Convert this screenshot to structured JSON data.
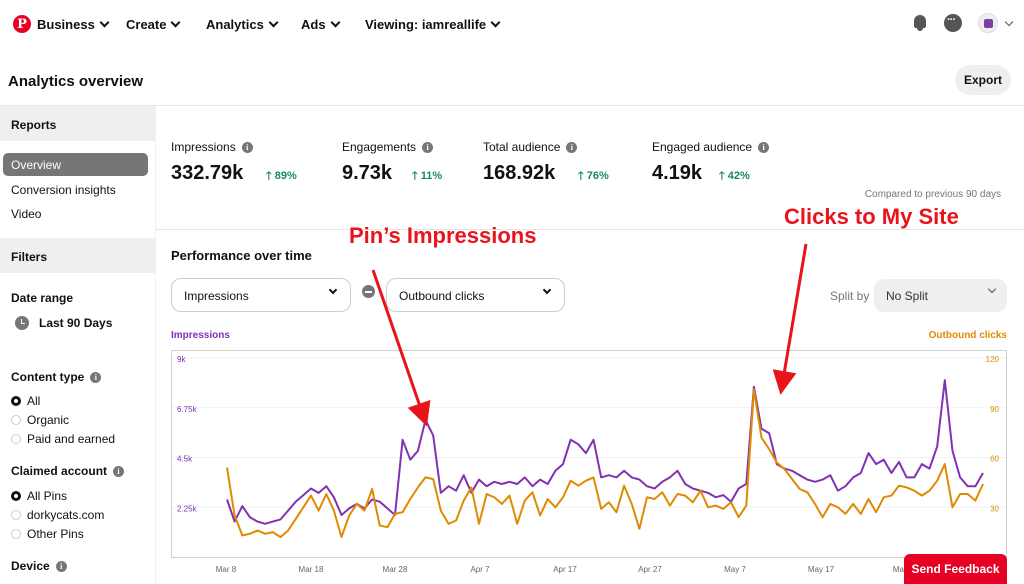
{
  "nav": {
    "business": "Business",
    "create": "Create",
    "analytics": "Analytics",
    "ads": "Ads",
    "viewing": "Viewing: iamreallife"
  },
  "header": {
    "title": "Analytics overview",
    "export_label": "Export"
  },
  "sidebar": {
    "reports_label": "Reports",
    "items": [
      "Overview",
      "Conversion insights",
      "Video"
    ],
    "filters_label": "Filters",
    "date_range_label": "Date range",
    "date_range_value": "Last 90 Days",
    "content_type_label": "Content type",
    "content_type_options": [
      "All",
      "Organic",
      "Paid and earned"
    ],
    "claimed_account_label": "Claimed account",
    "claimed_account_options": [
      "All Pins",
      "dorkycats.com",
      "Other Pins"
    ],
    "device_label": "Device"
  },
  "metrics": [
    {
      "label": "Impressions",
      "value": "332.79k",
      "delta": "89%"
    },
    {
      "label": "Engagements",
      "value": "9.73k",
      "delta": "11%"
    },
    {
      "label": "Total audience",
      "value": "168.92k",
      "delta": "76%"
    },
    {
      "label": "Engaged audience",
      "value": "4.19k",
      "delta": "42%"
    }
  ],
  "compare_note": "Compared to previous 90 days",
  "performance": {
    "title": "Performance over time",
    "metric1": "Impressions",
    "metric2": "Outbound clicks",
    "split_label": "Split by",
    "split_value": "No Split",
    "left_axis_title": "Impressions",
    "right_axis_title": "Outbound clicks"
  },
  "annotations": {
    "left": "Pin’s Impressions",
    "right": "Clicks to My Site"
  },
  "feedback_label": "Send Feedback",
  "colors": {
    "impressions": "#8032b4",
    "clicks": "#e08a00",
    "accent": "#e60023",
    "positive": "#1a8a56"
  },
  "chart_data": {
    "type": "line",
    "x_tick_labels": [
      "Mar 8",
      "Mar 18",
      "Mar 28",
      "Apr 7",
      "Apr 17",
      "Apr 27",
      "May 7",
      "May 17",
      "May 27"
    ],
    "left_ticks": [
      "2.25k",
      "4.5k",
      "6.75k",
      "9k"
    ],
    "right_ticks": [
      "30",
      "60",
      "90",
      "120"
    ],
    "ylim_left": [
      0,
      9000
    ],
    "ylim_right": [
      0,
      120
    ],
    "series": [
      {
        "name": "Impressions",
        "axis": "left",
        "color": "#8032b4",
        "values": [
          2600,
          1600,
          2300,
          1800,
          1600,
          1500,
          1600,
          1700,
          2100,
          2500,
          2800,
          3100,
          2900,
          3200,
          2700,
          1900,
          2200,
          2400,
          2200,
          2600,
          2500,
          2200,
          1900,
          5300,
          4400,
          4800,
          6200,
          5500,
          2900,
          3200,
          3000,
          3700,
          2900,
          3500,
          3200,
          3400,
          3300,
          3400,
          3300,
          3600,
          3200,
          3500,
          3300,
          3900,
          4200,
          5300,
          5100,
          4700,
          5300,
          3600,
          3700,
          3600,
          3900,
          3600,
          3500,
          3200,
          3100,
          3400,
          3600,
          3900,
          3300,
          3100,
          3000,
          2900,
          2700,
          2800,
          2500,
          3100,
          3300,
          7700,
          5800,
          5600,
          4200,
          4000,
          3900,
          3700,
          3500,
          3400,
          3500,
          3700,
          3000,
          3200,
          3600,
          3800,
          4700,
          4200,
          4400,
          3800,
          4300,
          3600,
          3600,
          4200,
          4000,
          5000,
          8000,
          4800,
          3600,
          3200,
          3200,
          3800
        ]
      },
      {
        "name": "Outbound clicks",
        "axis": "right",
        "color": "#e08a00",
        "values": [
          54,
          25,
          13,
          14,
          16,
          14,
          15,
          12,
          16,
          23,
          30,
          37,
          28,
          38,
          28,
          12,
          25,
          32,
          28,
          41,
          19,
          18,
          26,
          27,
          35,
          42,
          48,
          47,
          28,
          20,
          22,
          34,
          42,
          20,
          38,
          36,
          32,
          37,
          20,
          34,
          39,
          25,
          35,
          30,
          36,
          46,
          43,
          46,
          48,
          29,
          33,
          27,
          43,
          32,
          17,
          36,
          35,
          39,
          31,
          38,
          37,
          33,
          40,
          30,
          31,
          29,
          33,
          24,
          31,
          101,
          72,
          65,
          57,
          53,
          47,
          41,
          39,
          32,
          24,
          32,
          30,
          26,
          32,
          26,
          35,
          27,
          36,
          37,
          43,
          42,
          40,
          37,
          40,
          46,
          56,
          30,
          38,
          38,
          34,
          44
        ]
      }
    ]
  }
}
